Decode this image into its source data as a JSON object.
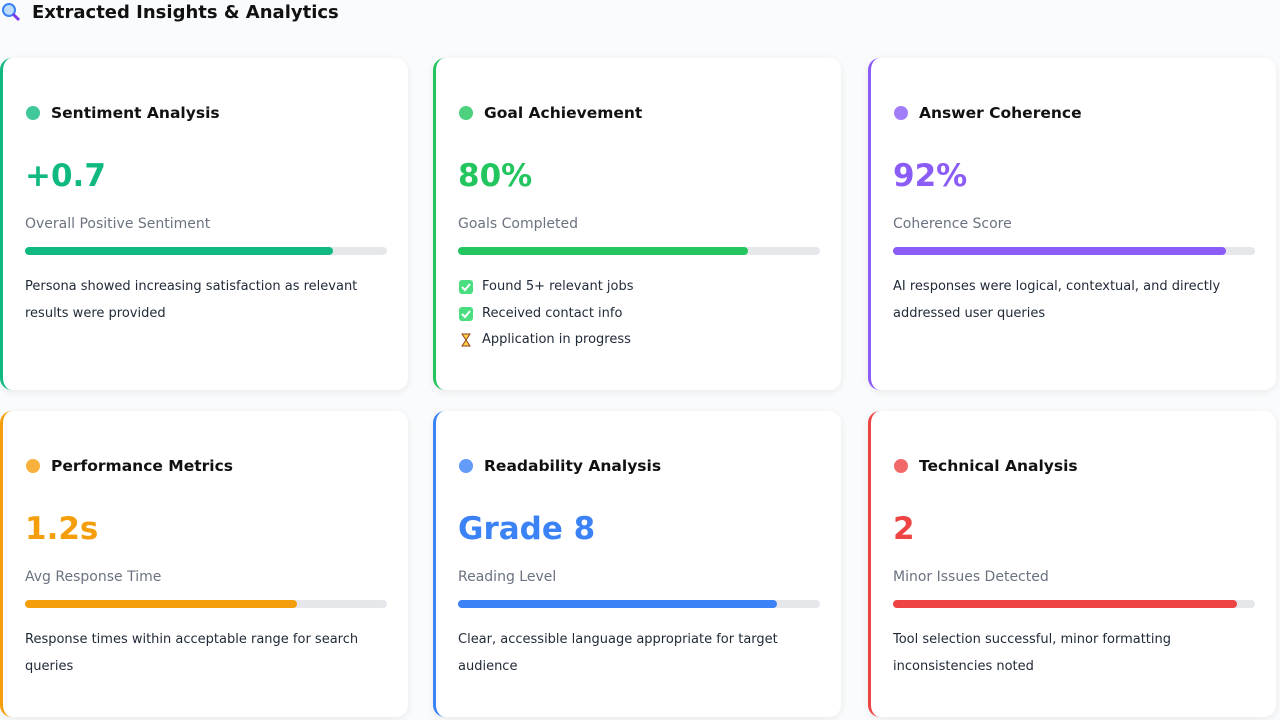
{
  "header": {
    "title": "Extracted Insights & Analytics"
  },
  "cards": [
    {
      "title": "Sentiment Analysis",
      "value": "+0.7",
      "label": "Overall Positive Sentiment",
      "progress": 85,
      "color": "#10b981",
      "description": "Persona showed increasing satisfaction as relevant results were provided"
    },
    {
      "title": "Goal Achievement",
      "value": "80%",
      "label": "Goals Completed",
      "progress": 80,
      "color": "#22c55e",
      "items": [
        "Found 5+ relevant jobs",
        "Received contact info",
        "Application in progress"
      ]
    },
    {
      "title": "Answer Coherence",
      "value": "92%",
      "label": "Coherence Score",
      "progress": 92,
      "color": "#8b5cf6",
      "description": "AI responses were logical, contextual, and directly addressed user queries"
    },
    {
      "title": "Performance Metrics",
      "value": "1.2s",
      "label": "Avg Response Time",
      "progress": 75,
      "color": "#f59e0b",
      "description": "Response times within acceptable range for search queries"
    },
    {
      "title": "Readability Analysis",
      "value": "Grade 8",
      "label": "Reading Level",
      "progress": 88,
      "color": "#3b82f6",
      "description": "Clear, accessible language appropriate for target audience"
    },
    {
      "title": "Technical Analysis",
      "value": "2",
      "label": "Minor Issues Detected",
      "progress": 95,
      "color": "#ef4444",
      "description": "Tool selection successful, minor formatting inconsistencies noted"
    }
  ]
}
